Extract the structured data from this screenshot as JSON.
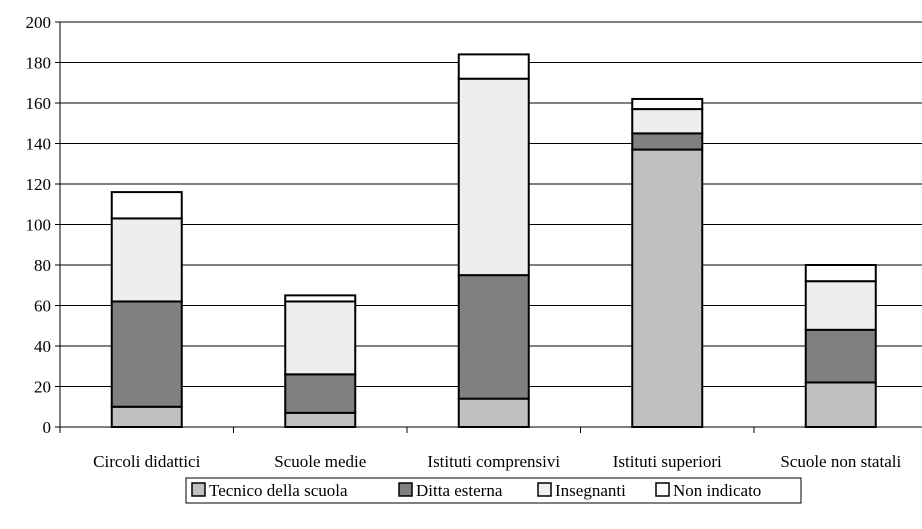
{
  "chart_data": {
    "type": "bar",
    "stacked": true,
    "categories": [
      "Circoli didattici",
      "Scuole medie",
      "Istituti comprensivi",
      "Istituti superiori",
      "Scuole non statali"
    ],
    "series": [
      {
        "name": "Tecnico della scuola",
        "color": "#c0c0c0",
        "values": [
          10,
          7,
          14,
          137,
          22
        ]
      },
      {
        "name": "Ditta esterna",
        "color": "#808080",
        "values": [
          52,
          19,
          61,
          8,
          26
        ]
      },
      {
        "name": "Insegnanti",
        "color": "#eeeeee",
        "values": [
          41,
          36,
          97,
          12,
          24
        ]
      },
      {
        "name": "Non indicato",
        "color": "#ffffff",
        "values": [
          13,
          3,
          12,
          5,
          8
        ]
      }
    ],
    "ylim": [
      0,
      200
    ],
    "yticks": [
      0,
      20,
      40,
      60,
      80,
      100,
      120,
      140,
      160,
      180,
      200
    ],
    "grid": true,
    "legend_position": "bottom"
  }
}
